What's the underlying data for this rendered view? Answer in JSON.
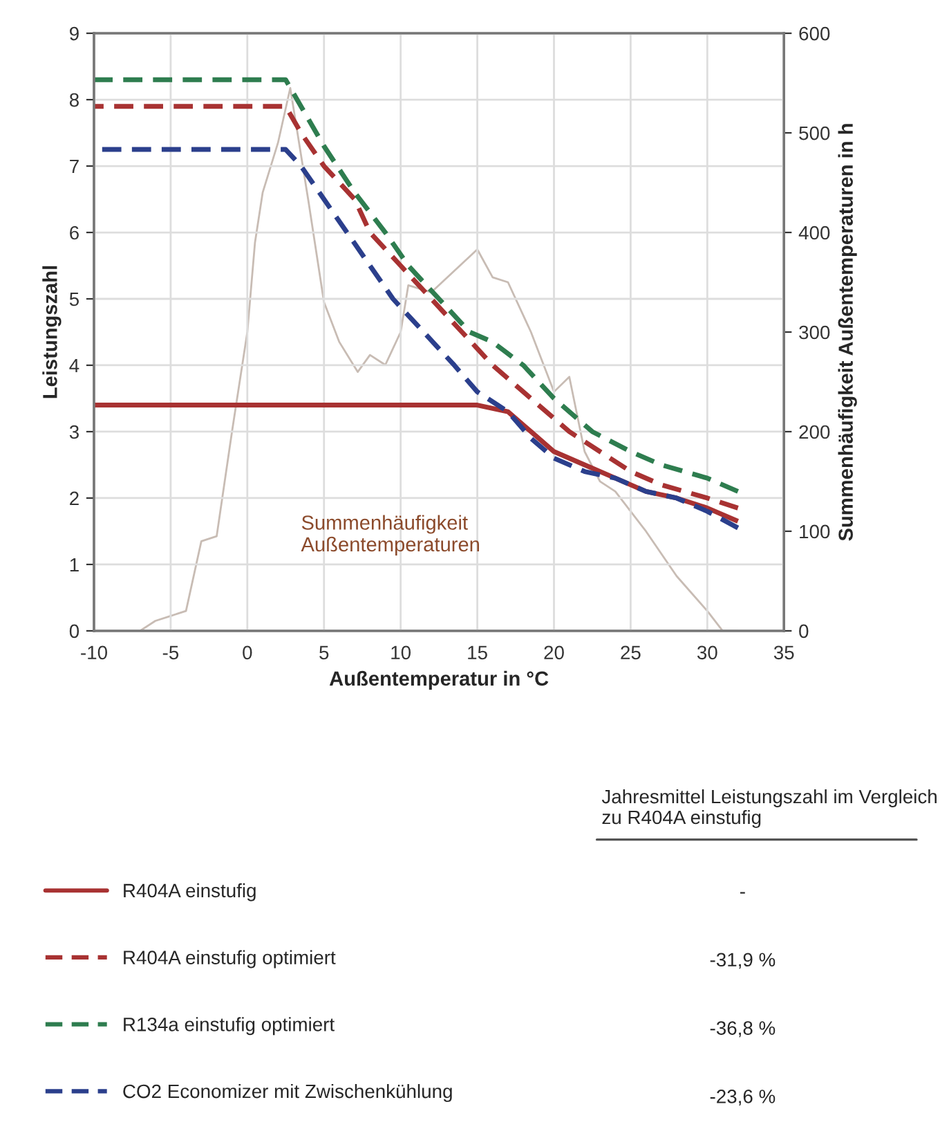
{
  "chart_data": {
    "type": "line",
    "xlabel": "Außentemperatur in °C",
    "ylabel": "Leistungszahl",
    "y2label": "Summenhäufigkeit Außentemperaturen in h",
    "xlim": [
      -10,
      35
    ],
    "xticks": [
      -10,
      -5,
      0,
      5,
      10,
      15,
      20,
      25,
      30,
      35
    ],
    "ylim": [
      0,
      9
    ],
    "yticks": [
      0,
      1,
      2,
      3,
      4,
      5,
      6,
      7,
      8,
      9
    ],
    "y2lim": [
      0,
      600
    ],
    "y2ticks": [
      0,
      100,
      200,
      300,
      400,
      500,
      600
    ],
    "grid": true,
    "legend": "bottom",
    "marker": "none",
    "series": [
      {
        "name": "R404A einstufig",
        "color": "#a83232",
        "line_style": "solid",
        "x": [
          -10,
          15,
          16,
          17,
          18.5,
          20,
          22,
          24,
          26,
          28,
          30,
          32
        ],
        "values": [
          3.4,
          3.4,
          3.35,
          3.3,
          3.0,
          2.7,
          2.5,
          2.3,
          2.1,
          2.0,
          1.85,
          1.65
        ]
      },
      {
        "name": "R404A einstufig optimiert",
        "color": "#a83232",
        "line_style": "dashed",
        "x": [
          -10,
          2.5,
          3.5,
          5,
          7,
          8,
          10,
          12,
          14,
          16,
          18.5,
          21,
          23,
          25,
          27,
          30,
          32
        ],
        "values": [
          7.9,
          7.9,
          7.5,
          7.0,
          6.5,
          6.0,
          5.5,
          5.0,
          4.5,
          4.0,
          3.5,
          3.0,
          2.7,
          2.4,
          2.2,
          2.0,
          1.85
        ]
      },
      {
        "name": "R134a einstufig optimiert",
        "color": "#2e7d4f",
        "line_style": "dashed",
        "x": [
          -10,
          2.5,
          3.5,
          5,
          7,
          9,
          10.5,
          12.5,
          14.5,
          16,
          18,
          20,
          22.5,
          25,
          27,
          30,
          32
        ],
        "values": [
          8.3,
          8.3,
          7.9,
          7.3,
          6.6,
          6.0,
          5.5,
          5.0,
          4.5,
          4.35,
          4.0,
          3.5,
          3.0,
          2.7,
          2.5,
          2.3,
          2.1
        ]
      },
      {
        "name": "CO2 Economizer mit Zwischenkühlung",
        "color": "#2b3f8c",
        "line_style": "dashed",
        "x": [
          -10,
          2.5,
          3.5,
          5,
          6.5,
          8,
          9.5,
          11.5,
          13.5,
          15,
          17,
          18.5,
          20,
          22,
          24,
          26,
          28,
          30,
          32
        ],
        "values": [
          7.25,
          7.25,
          7.0,
          6.5,
          6.0,
          5.5,
          5.0,
          4.5,
          4.0,
          3.6,
          3.3,
          2.9,
          2.6,
          2.4,
          2.3,
          2.1,
          2.0,
          1.8,
          1.55
        ]
      },
      {
        "color": "#c8bcb4",
        "line_style": "solid",
        "axis": "y2",
        "x": [
          -7,
          -6,
          -5,
          -4,
          -3,
          -2,
          -1,
          0,
          0.5,
          1,
          2,
          2.8,
          4,
          5,
          6,
          7.2,
          8,
          9,
          10,
          10.5,
          12,
          15,
          16,
          17,
          18.5,
          20,
          21,
          22,
          23,
          24,
          26,
          28,
          30,
          31,
          32
        ],
        "values": [
          0,
          10,
          15,
          20,
          90,
          95,
          200,
          300,
          390,
          440,
          490,
          545,
          430,
          330,
          290,
          260,
          277,
          267,
          300,
          347,
          340,
          383,
          355,
          350,
          300,
          240,
          255,
          180,
          150,
          140,
          100,
          55,
          20,
          0,
          0
        ]
      }
    ],
    "annotations": [
      "Summenhäufigkeit\nAußentemperaturen",
      "Jahresmittel Leistungszahl im Vergleich zu R404A einstufig",
      "-",
      "-31,9 %",
      "-36,8 %",
      "-23,6 %"
    ]
  }
}
